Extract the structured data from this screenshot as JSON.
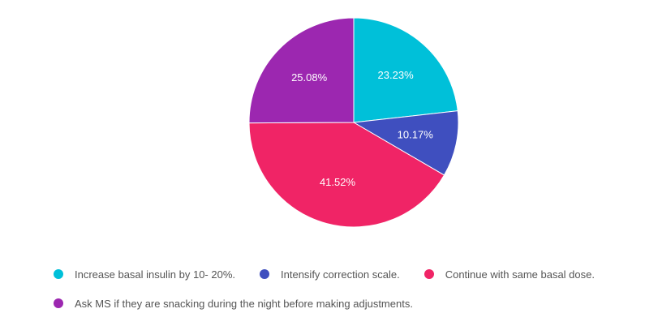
{
  "chart_data": {
    "type": "pie",
    "categories": [
      "Increase basal insulin by 10- 20%.",
      "Intensify correction scale.",
      "Continue with same basal dose.",
      "Ask MS if they are snacking during the night before making adjustments."
    ],
    "values": [
      23.23,
      10.17,
      41.52,
      25.08
    ],
    "value_labels": [
      "23.23%",
      "10.17%",
      "41.52%",
      "25.08%"
    ],
    "colors": [
      "#00c0d9",
      "#3f4fbf",
      "#f02466",
      "#9c27b0"
    ],
    "legend_position": "bottom",
    "start_angle": "top, clockwise"
  },
  "legend": {
    "items": [
      {
        "label": "Increase basal insulin by 10- 20%.",
        "color": "#00c0d9"
      },
      {
        "label": "Intensify correction scale.",
        "color": "#3f4fbf"
      },
      {
        "label": "Continue with same basal dose.",
        "color": "#f02466"
      },
      {
        "label": "Ask MS if they are snacking during the night before making adjustments.",
        "color": "#9c27b0"
      }
    ]
  }
}
